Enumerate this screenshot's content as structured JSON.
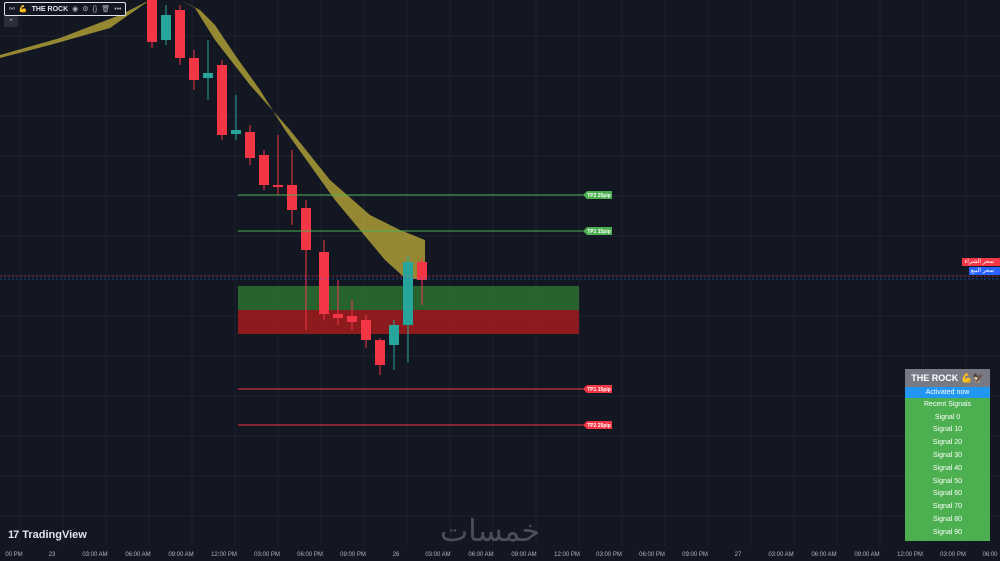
{
  "indicator": {
    "name": "THE ROCK",
    "emoji": "💪"
  },
  "colors": {
    "background": "#131722",
    "grid": "#1e2230",
    "bull": "#26a69a",
    "bear": "#f23645",
    "band": "#c8b43a",
    "tp_up": "#4caf50",
    "tp_down": "#f23645",
    "zone_green": "#2e7d32",
    "zone_red": "#b71c1c"
  },
  "tp_levels": [
    {
      "label": "TP2 25pip",
      "kind": "up"
    },
    {
      "label": "TP1 15pip",
      "kind": "up"
    },
    {
      "label": "TP1 15pip",
      "kind": "down"
    },
    {
      "label": "TP2 25pip",
      "kind": "down"
    }
  ],
  "price_tags": {
    "sell": "سعر الشراء",
    "buy": "سعر البيع"
  },
  "x_axis": {
    "labels": [
      "00 PM",
      "23",
      "03:00 AM",
      "06:00 AM",
      "09:00 AM",
      "12:00 PM",
      "03:00 PM",
      "06:00 PM",
      "09:00 PM",
      "26",
      "03:00 AM",
      "06:00 AM",
      "09:00 AM",
      "12:00 PM",
      "03:00 PM",
      "06:00 PM",
      "09:00 PM",
      "27",
      "03:00 AM",
      "06:00 AM",
      "09:00 AM",
      "12:00 PM",
      "03:00 PM",
      "06:00"
    ]
  },
  "branding": {
    "tradingview": "TradingView",
    "watermark": "خمسات"
  },
  "panel": {
    "title": "THE ROCK",
    "title_emoji": "💪🦅",
    "status": "Activated now",
    "section": "Recent Signals",
    "signals": [
      "Signal 0",
      "Signal 10",
      "Signal 20",
      "Signal 30",
      "Signal 40",
      "Signal 50",
      "Signal 60",
      "Signal 70",
      "Signal 80",
      "Signal 90"
    ]
  }
}
